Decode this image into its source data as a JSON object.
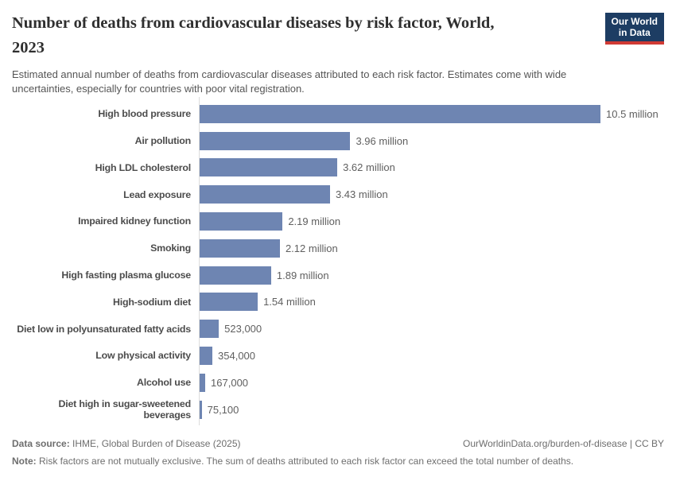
{
  "header": {
    "title": "Number of deaths from cardiovascular diseases by risk factor, World,\n2023",
    "subtitle": "Estimated annual number of deaths from cardiovascular diseases attributed to each risk factor. Estimates come with wide\nuncertainties, especially for countries with poor vital registration.",
    "logo": {
      "line1": "Our World",
      "line2": "in Data"
    }
  },
  "chart_data": {
    "type": "bar",
    "orientation": "horizontal",
    "title": "Number of deaths from cardiovascular diseases by risk factor, World, 2023",
    "categories": [
      "High blood pressure",
      "Air pollution",
      "High LDL cholesterol",
      "Lead exposure",
      "Impaired kidney function",
      "Smoking",
      "High fasting plasma glucose",
      "High-sodium diet",
      "Diet low in polyunsaturated fatty acids",
      "Low physical activity",
      "Alcohol use",
      "Diet high in sugar-sweetened\nbeverages"
    ],
    "values": [
      10500000,
      3960000,
      3620000,
      3430000,
      2190000,
      2120000,
      1890000,
      1540000,
      523000,
      354000,
      167000,
      75100
    ],
    "value_labels": [
      "10.5 million",
      "3.96 million",
      "3.62 million",
      "3.43 million",
      "2.19 million",
      "2.12 million",
      "1.89 million",
      "1.54 million",
      "523,000",
      "354,000",
      "167,000",
      "75,100"
    ],
    "xlim": [
      0,
      10500000
    ],
    "xlabel": "",
    "ylabel": "",
    "grid": false,
    "legend": "none",
    "bar_color": "#6e85b2"
  },
  "footer": {
    "datasource_label": "Data source:",
    "datasource_text": "IHME, Global Burden of Disease (2025)",
    "attribution": "OurWorldinData.org/burden-of-disease | CC BY",
    "note_label": "Note:",
    "note_text": "Risk factors are not mutually exclusive. The sum of deaths attributed to each risk factor can exceed the total number of deaths."
  },
  "colors": {
    "bar": "#6e85b2",
    "logo_bg": "#1d3d63",
    "logo_accent": "#d03a34",
    "axis_line": "#dcdcdc"
  }
}
